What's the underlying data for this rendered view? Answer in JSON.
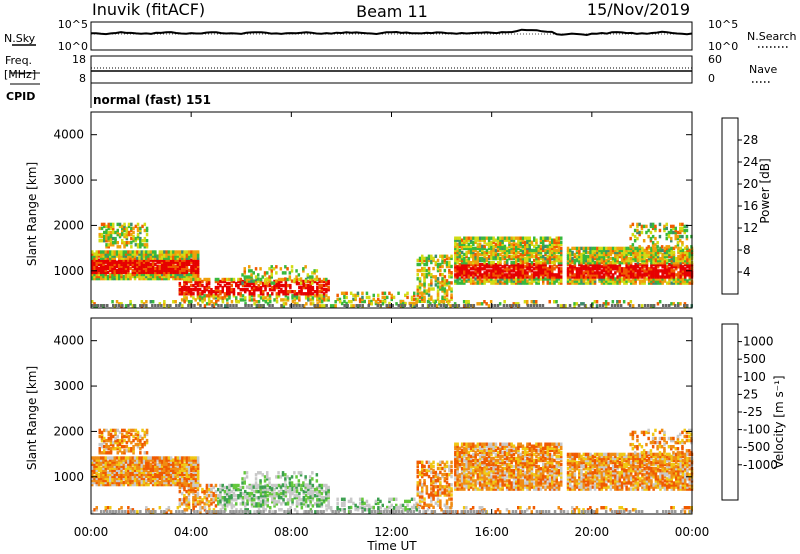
{
  "header": {
    "station": "Inuvik (fitACF)",
    "beam": "Beam 11",
    "date": "15/Nov/2019"
  },
  "panels": {
    "nsky": {
      "label": "N.Sky",
      "ticks": [
        "10^5",
        "10^0"
      ],
      "right_label": "N.Search",
      "right_ticks": [
        "10^5",
        "10^0"
      ]
    },
    "freq": {
      "label": "Freq.",
      "unit": "[MHz]",
      "ticks": [
        "18",
        "8"
      ],
      "right_label": "Nave",
      "right_ticks": [
        "60",
        "0"
      ]
    },
    "cpid": {
      "label": "CPID",
      "mode": "normal (fast) 151"
    }
  },
  "chart_data": [
    {
      "type": "heatmap",
      "name": "power",
      "ylabel": "Slant Range [km]",
      "ylim": [
        180,
        4500
      ],
      "yticks": [
        "1000",
        "2000",
        "3000",
        "4000"
      ],
      "colorbar_label": "Power [dB]",
      "colorbar_ticks": [
        "4",
        "8",
        "12",
        "16",
        "20",
        "24",
        "28"
      ],
      "colors": [
        "#0a1ee6",
        "#1f5fb4",
        "#3c8c6e",
        "#37b83c",
        "#d2dc14",
        "#f0a00a",
        "#f05a00",
        "#e60000"
      ]
    },
    {
      "type": "heatmap",
      "name": "velocity",
      "ylabel": "Slant Range [km]",
      "ylim": [
        180,
        4500
      ],
      "yticks": [
        "1000",
        "2000",
        "3000",
        "4000"
      ],
      "colorbar_label": "Velocity [m s⁻¹]",
      "colorbar_ticks": [
        "1000",
        "500",
        "100",
        "25",
        "-25",
        "-100",
        "-500",
        "-1000"
      ],
      "colors": [
        "#1432c8",
        "#2878b4",
        "#3ca050",
        "#64c83c",
        "#c8c8c8",
        "#c8c8c8",
        "#f0c814",
        "#f08c14",
        "#f05a00",
        "#e61414"
      ]
    }
  ],
  "xaxis": {
    "ticks": [
      "00:00",
      "04:00",
      "08:00",
      "12:00",
      "16:00",
      "20:00",
      "00:00"
    ],
    "label": "Time UT"
  }
}
